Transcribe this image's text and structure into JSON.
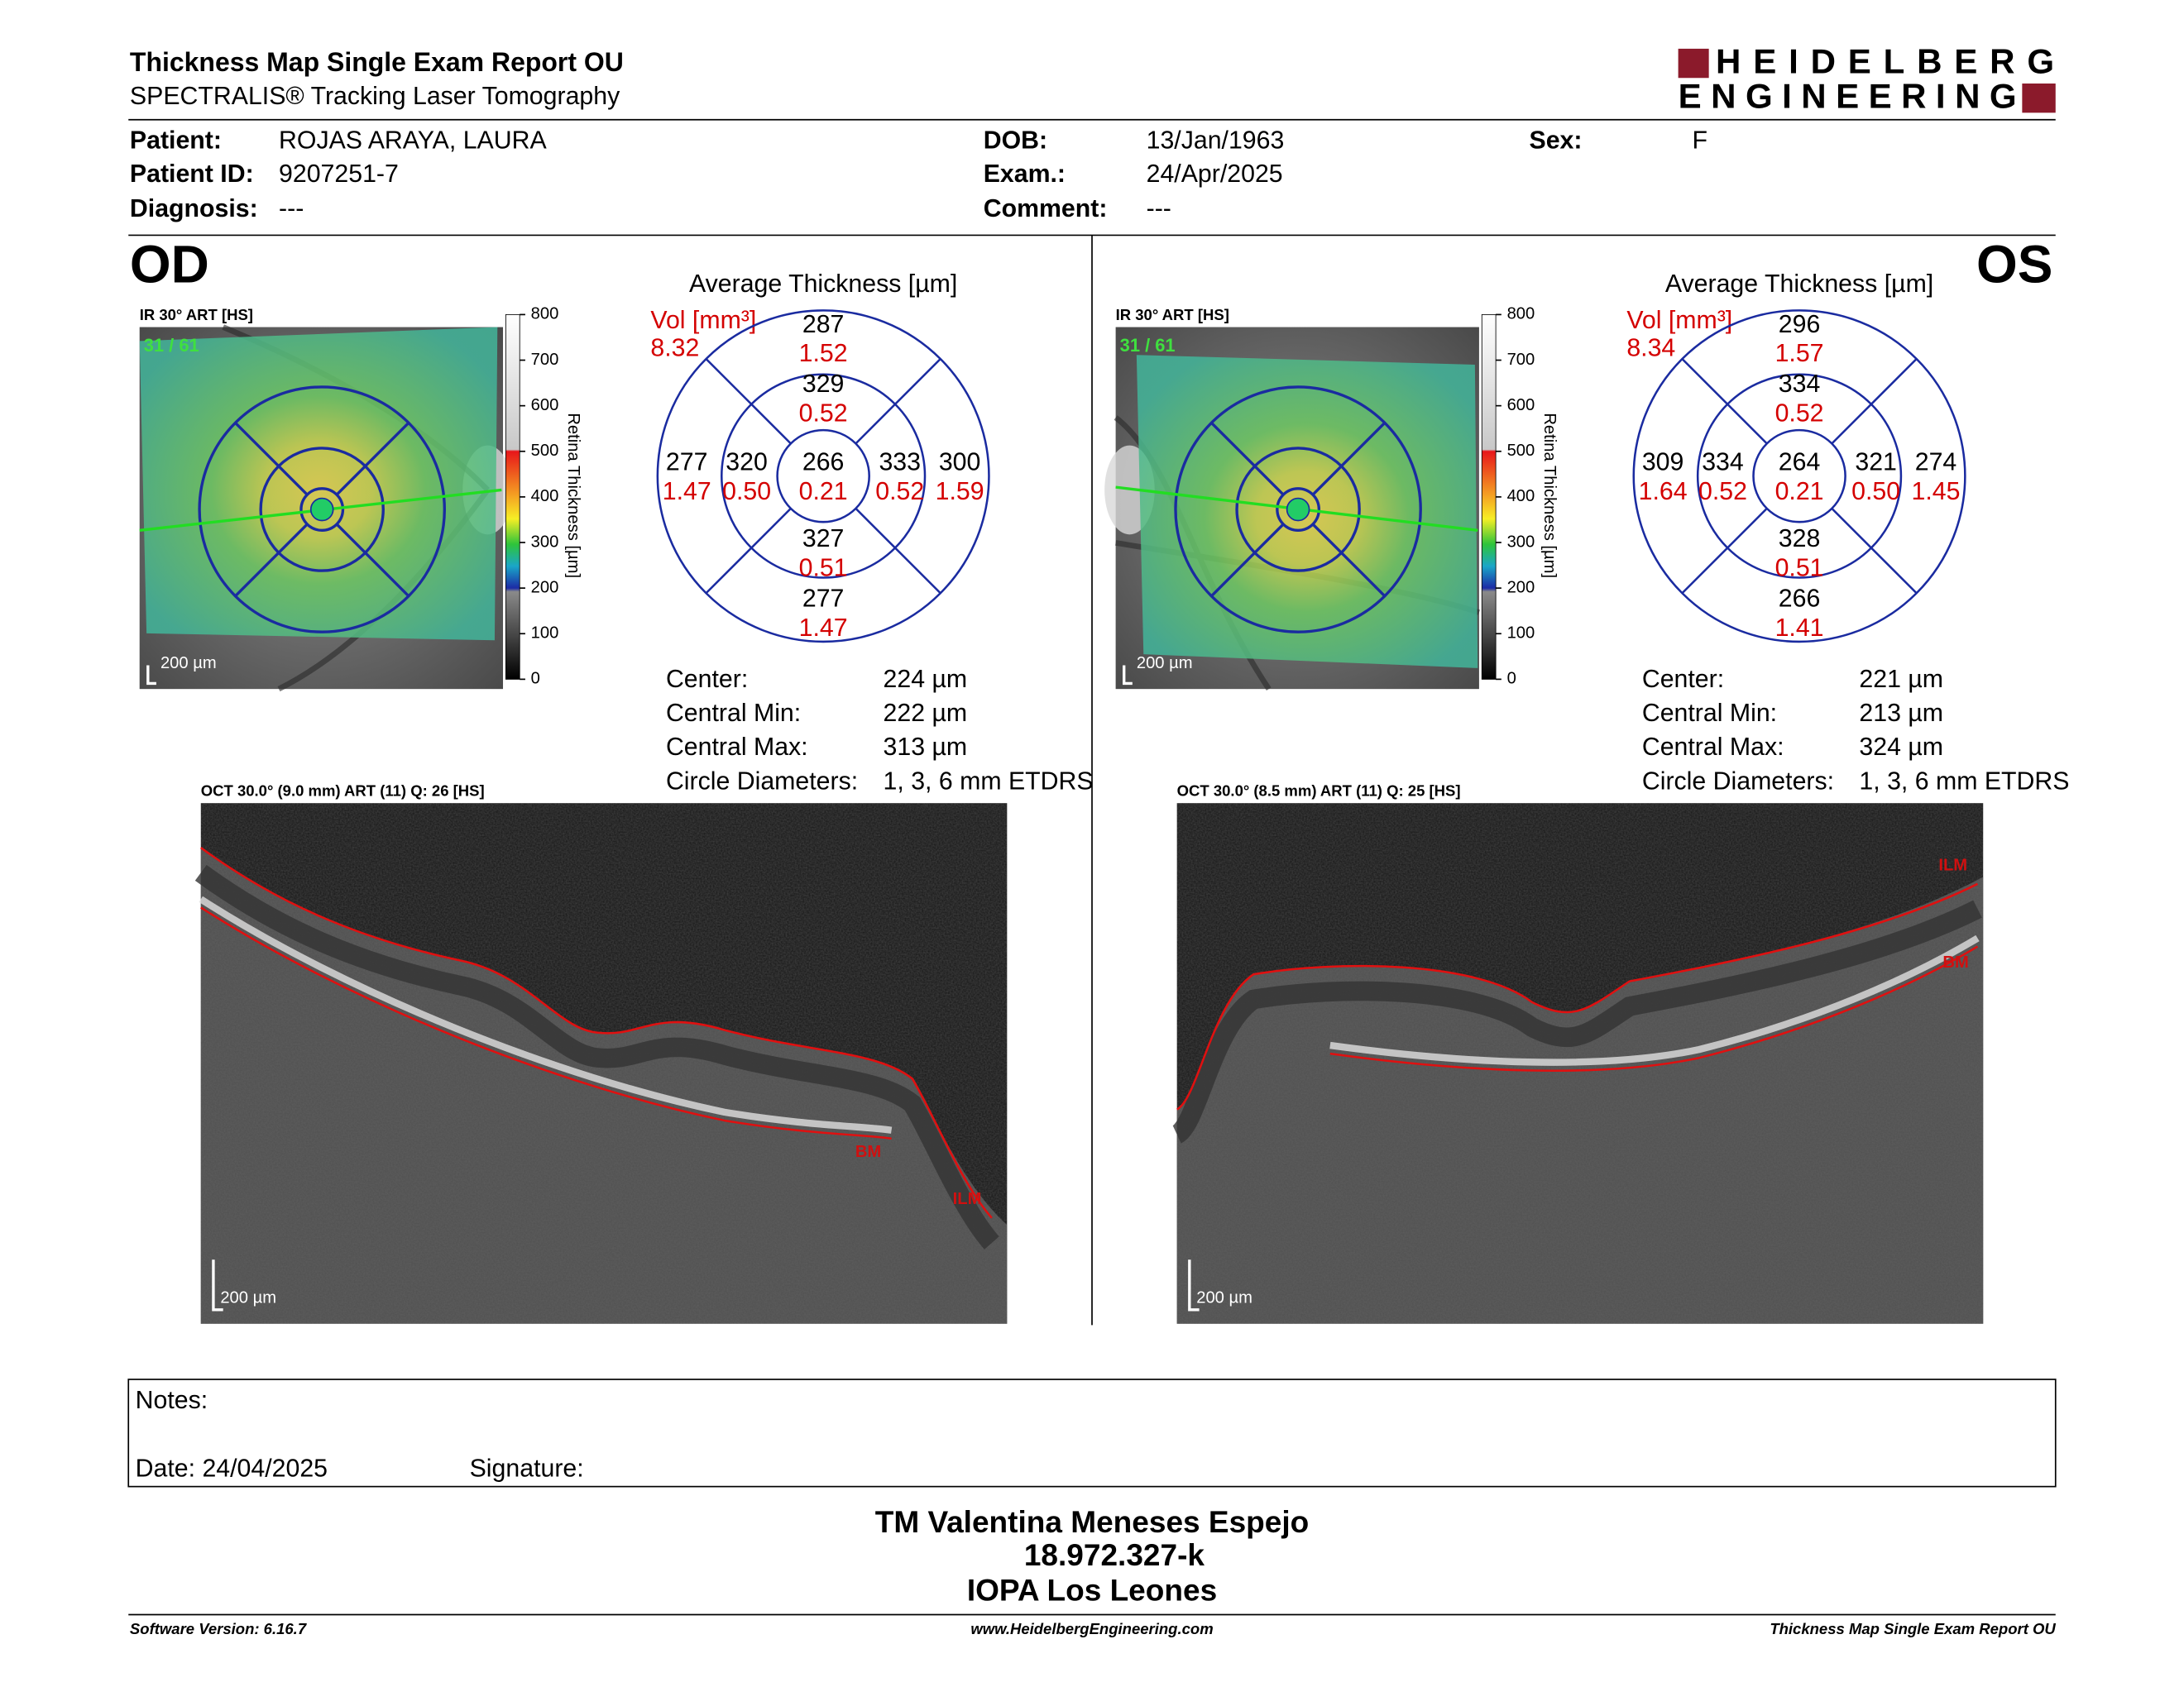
{
  "header": {
    "title": "Thickness Map Single Exam Report OU",
    "subtitle": "SPECTRALIS® Tracking Laser Tomography",
    "logo": [
      "HEIDELBERG",
      "ENGINEERING"
    ]
  },
  "patient": {
    "fields": [
      {
        "label": "Patient:",
        "value": "ROJAS ARAYA, LAURA"
      },
      {
        "label": "Patient ID:",
        "value": "9207251-7"
      },
      {
        "label": "Diagnosis:",
        "value": "---"
      },
      {
        "label": "DOB:",
        "value": "13/Jan/1963"
      },
      {
        "label": "Exam.:",
        "value": "24/Apr/2025"
      },
      {
        "label": "Comment:",
        "value": "---"
      },
      {
        "label": "Sex:",
        "value": "F"
      }
    ]
  },
  "eyes": [
    {
      "eye": "OD",
      "image_label": "IR 30° ART [HS]",
      "frames": "31 / 61",
      "scale_bar": "200 µm",
      "colorbar": {
        "title": "Retina Thickness [µm]",
        "ticks": [
          "800",
          "700",
          "600",
          "500",
          "400",
          "300",
          "200",
          "100",
          "0"
        ]
      },
      "etdrs": {
        "title": "Average Thickness [µm]",
        "vol_label": "Vol [mm³]",
        "vol": "8.32",
        "sectors": [
          {
            "thickness": "287",
            "volume": "1.52"
          },
          {
            "thickness": "329",
            "volume": "0.52"
          },
          {
            "thickness": "277",
            "volume": "1.47"
          },
          {
            "thickness": "320",
            "volume": "0.50"
          },
          {
            "thickness": "266",
            "volume": "0.21"
          },
          {
            "thickness": "333",
            "volume": "0.52"
          },
          {
            "thickness": "300",
            "volume": "1.59"
          },
          {
            "thickness": "327",
            "volume": "0.51"
          },
          {
            "thickness": "277",
            "volume": "1.47"
          }
        ]
      },
      "stats": [
        {
          "label": "Center:",
          "value": "224 µm"
        },
        {
          "label": "Central Min:",
          "value": "222 µm"
        },
        {
          "label": "Central Max:",
          "value": "313 µm"
        },
        {
          "label": "Circle Diameters:",
          "value": "1, 3, 6 mm ETDRS"
        }
      ],
      "oct": {
        "label": "OCT 30.0° (9.0 mm) ART (11) Q: 26 [HS]",
        "scale_bar": "200 µm",
        "ilm": "ILM",
        "bm": "BM"
      }
    },
    {
      "eye": "OS",
      "image_label": "IR 30° ART [HS]",
      "frames": "31 / 61",
      "scale_bar": "200 µm",
      "colorbar": {
        "title": "Retina Thickness [µm]",
        "ticks": [
          "800",
          "700",
          "600",
          "500",
          "400",
          "300",
          "200",
          "100",
          "0"
        ]
      },
      "etdrs": {
        "title": "Average Thickness [µm]",
        "vol_label": "Vol [mm³]",
        "vol": "8.34",
        "sectors": [
          {
            "thickness": "296",
            "volume": "1.57"
          },
          {
            "thickness": "334",
            "volume": "0.52"
          },
          {
            "thickness": "309",
            "volume": "1.64"
          },
          {
            "thickness": "334",
            "volume": "0.52"
          },
          {
            "thickness": "264",
            "volume": "0.21"
          },
          {
            "thickness": "321",
            "volume": "0.50"
          },
          {
            "thickness": "274",
            "volume": "1.45"
          },
          {
            "thickness": "328",
            "volume": "0.51"
          },
          {
            "thickness": "266",
            "volume": "1.41"
          }
        ]
      },
      "stats": [
        {
          "label": "Center:",
          "value": "221 µm"
        },
        {
          "label": "Central Min:",
          "value": "213 µm"
        },
        {
          "label": "Central Max:",
          "value": "324 µm"
        },
        {
          "label": "Circle Diameters:",
          "value": "1, 3, 6 mm ETDRS"
        }
      ],
      "oct": {
        "label": "OCT 30.0° (8.5 mm) ART (11) Q: 25 [HS]",
        "scale_bar": "200 µm",
        "ilm": "ILM",
        "bm": "BM"
      }
    }
  ],
  "notes": {
    "label": "Notes:",
    "date": "Date: 24/04/2025",
    "signature": "Signature:"
  },
  "signature_block": [
    "TM Valentina Meneses Espejo",
    "18.972.327-k",
    "IOPA Los Leones"
  ],
  "footer": {
    "left": "Software Version: 6.16.7",
    "center": "www.HeidelbergEngineering.com",
    "right": "Thickness Map Single Exam Report OU"
  }
}
